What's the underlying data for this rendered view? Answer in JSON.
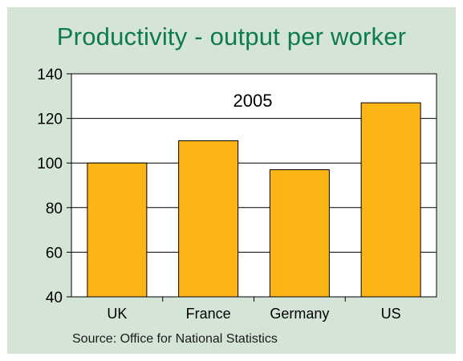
{
  "chart_data": {
    "type": "bar",
    "title": "Productivity - output per worker",
    "annotation": "2005",
    "categories": [
      "UK",
      "France",
      "Germany",
      "US"
    ],
    "values": [
      100,
      110,
      97,
      127
    ],
    "ylim": [
      40,
      140
    ],
    "yticks": [
      40,
      60,
      80,
      100,
      120,
      140
    ],
    "xlabel": "",
    "ylabel": "",
    "grid": true,
    "bar_color": "#fdb515",
    "source": "Source: Office for National Statistics"
  },
  "colors": {
    "background": "#d4e5d7",
    "title": "#0f7a4b",
    "bar": "#fdb515",
    "plot_area": "#ffffff"
  }
}
